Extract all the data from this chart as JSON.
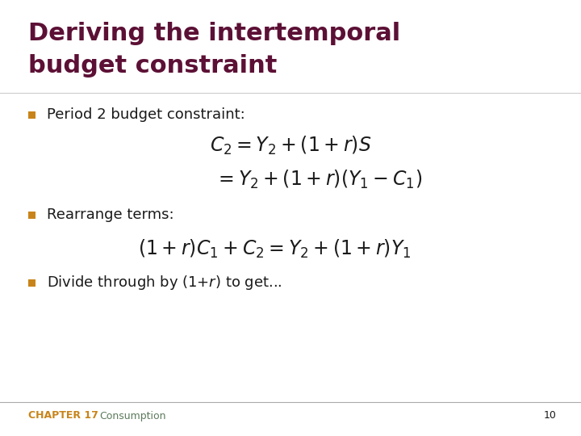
{
  "title_line1": "Deriving the intertemporal",
  "title_line2": "budget constraint",
  "title_color": "#5C1035",
  "background_color": "#FFFFFF",
  "bullet_color": "#C8841A",
  "bullet1_text": "Period 2 budget constraint:",
  "eq1a": "$\\mathbf{\\mathit{C}}_2 = \\mathbf{\\mathit{Y}}_2 + (1+\\mathbf{\\mathit{r}})\\mathbf{\\mathit{S}}$",
  "eq1b": "$= \\mathbf{\\mathit{Y}}_2 + (1+\\mathbf{\\mathit{r}})(\\mathbf{\\mathit{Y}}_1 - \\mathbf{\\mathit{C}}_1)$",
  "bullet2_text": "Rearrange terms:",
  "eq2": "$(1+\\mathbf{\\mathit{r}})\\mathbf{\\mathit{C}}_1 + \\mathbf{\\mathit{C}}_2 = \\mathbf{\\mathit{Y}}_2 + (1+\\mathbf{\\mathit{r}})\\mathbf{\\mathit{Y}}_1$",
  "bullet3_text": "Divide through by (1+$\\mathbf{\\mathit{r}}$) to get...",
  "footer_chapter": "CHAPTER 17",
  "footer_title": "Consumption",
  "footer_page": "10",
  "text_color": "#1A1A1A",
  "footer_chapter_color": "#C8841A",
  "footer_title_color": "#5C7A5C",
  "footer_page_color": "#1A1A1A"
}
